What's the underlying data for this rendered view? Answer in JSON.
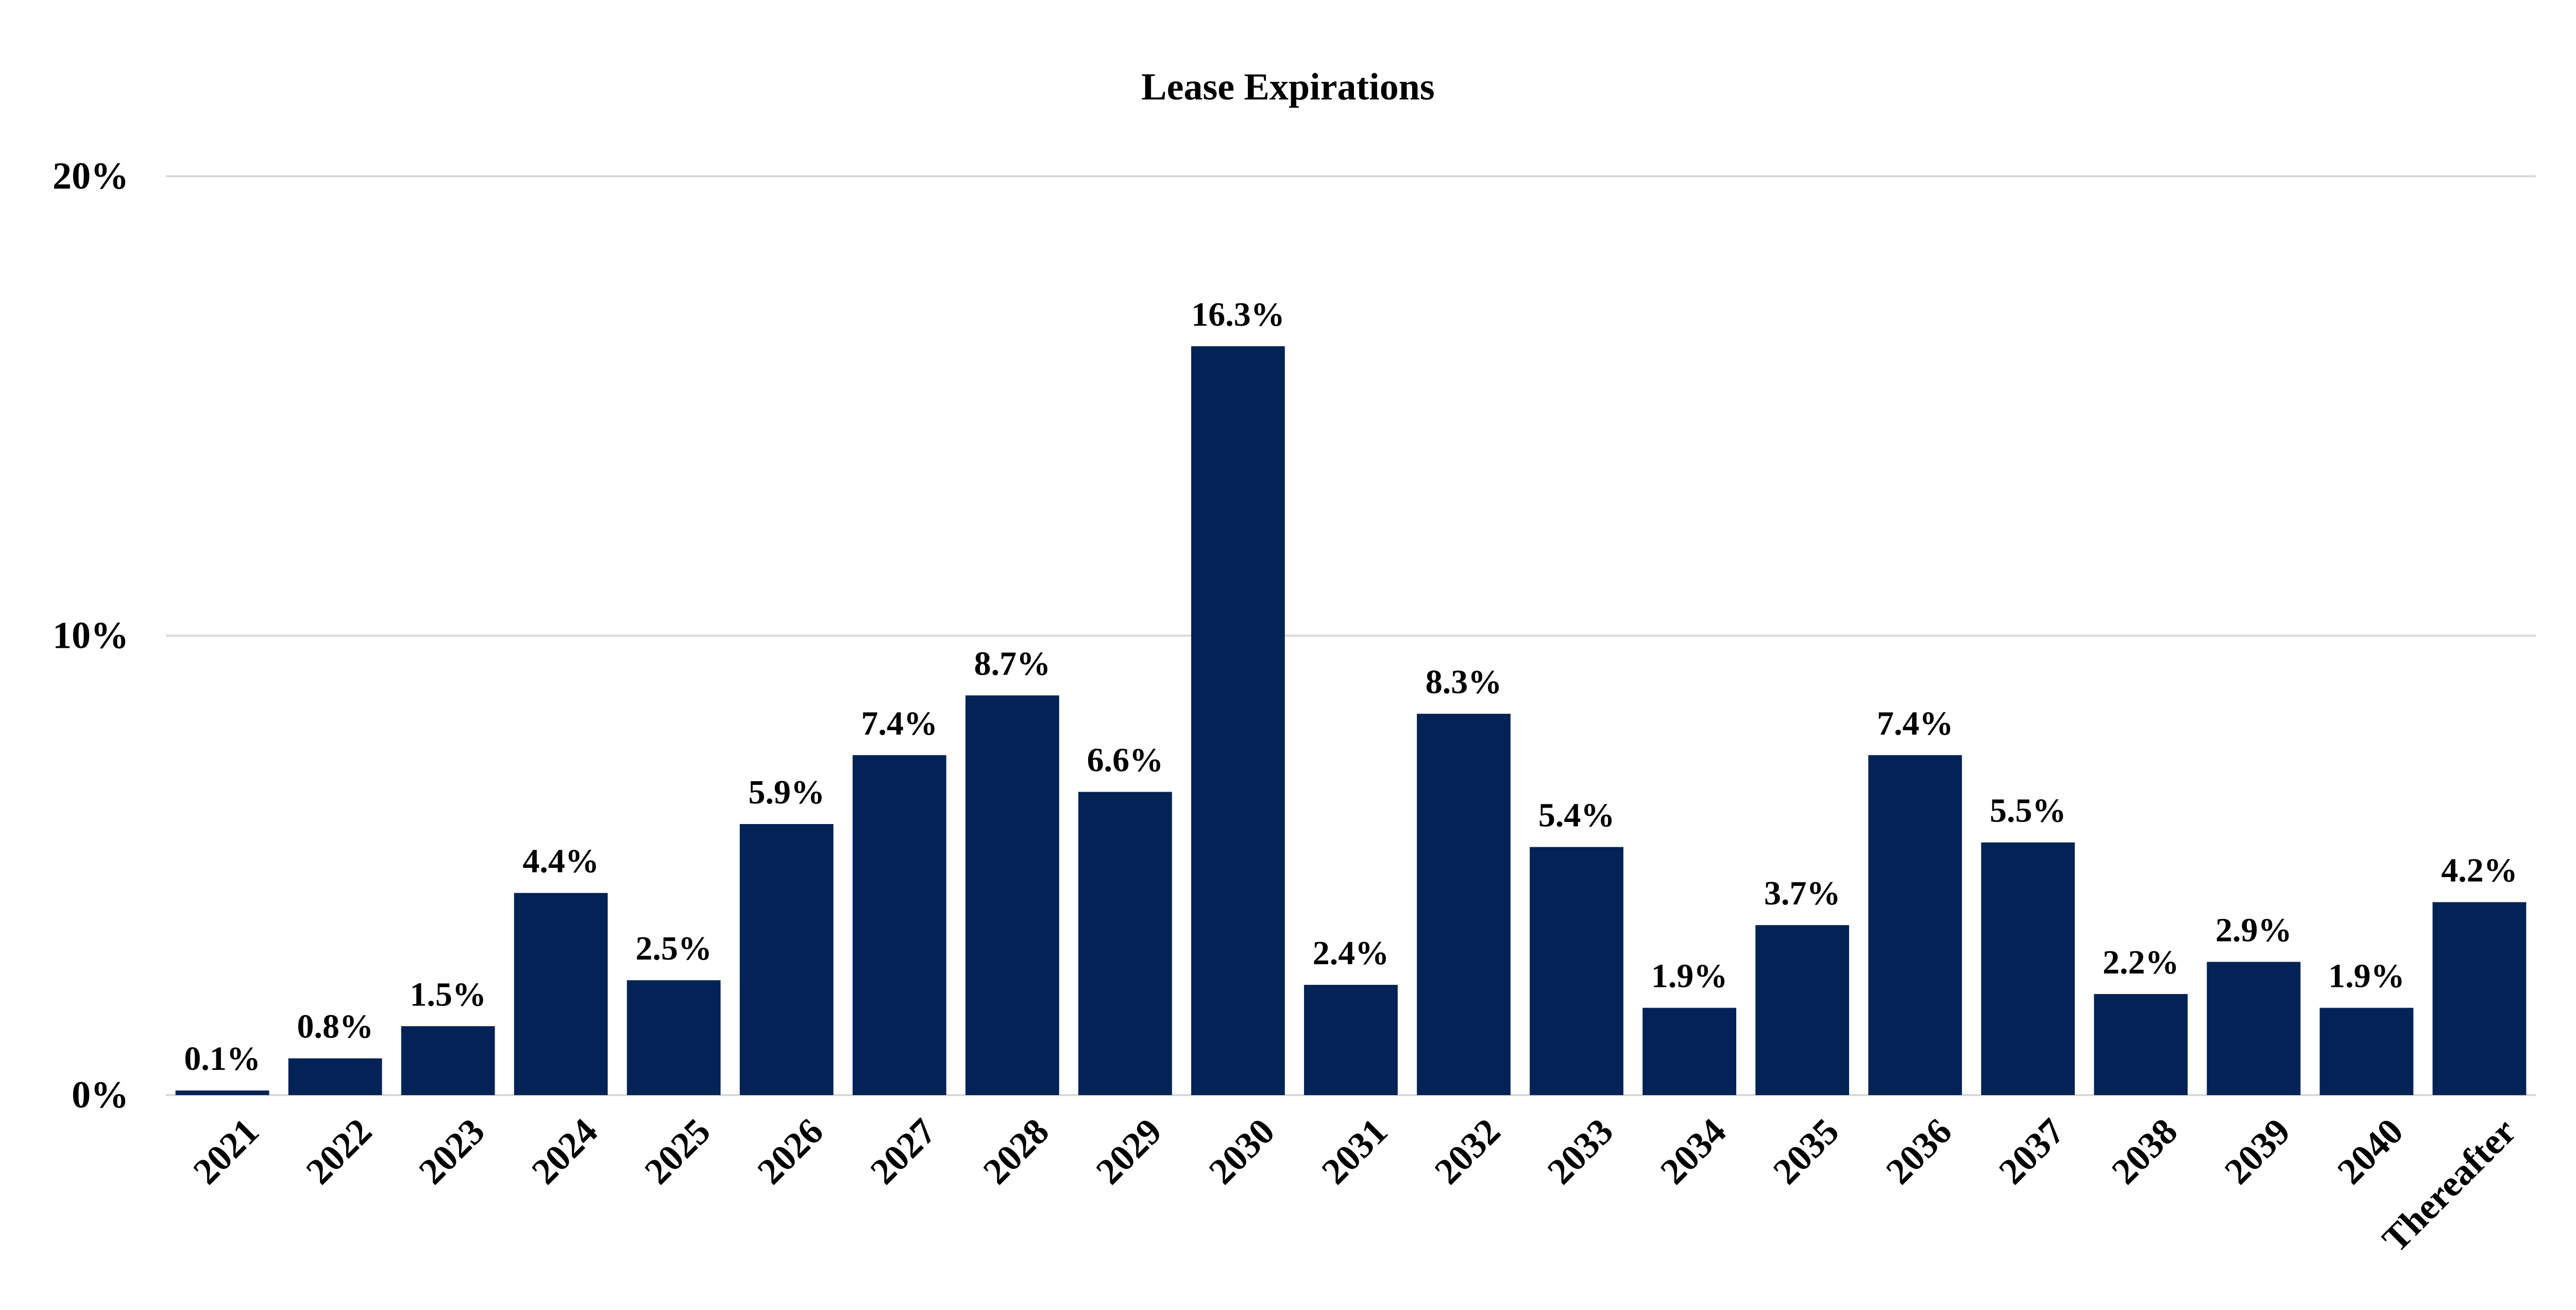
{
  "chart_data": {
    "type": "bar",
    "title": "Lease Expirations",
    "xlabel": "",
    "ylabel": "",
    "categories": [
      "2021",
      "2022",
      "2023",
      "2024",
      "2025",
      "2026",
      "2027",
      "2028",
      "2029",
      "2030",
      "2031",
      "2032",
      "2033",
      "2034",
      "2035",
      "2036",
      "2037",
      "2038",
      "2039",
      "2040",
      "Thereafter"
    ],
    "values": [
      0.1,
      0.8,
      1.5,
      4.4,
      2.5,
      5.9,
      7.4,
      8.7,
      6.6,
      16.3,
      2.4,
      8.3,
      5.4,
      1.9,
      3.7,
      7.4,
      5.5,
      2.2,
      2.9,
      1.9,
      4.2
    ],
    "data_labels": [
      "0.1%",
      "0.8%",
      "1.5%",
      "4.4%",
      "2.5%",
      "5.9%",
      "7.4%",
      "8.7%",
      "6.6%",
      "16.3%",
      "2.4%",
      "8.3%",
      "5.4%",
      "1.9%",
      "3.7%",
      "7.4%",
      "5.5%",
      "2.2%",
      "2.9%",
      "1.9%",
      "4.2%"
    ],
    "ylim": [
      0,
      20
    ],
    "yticks": [
      0,
      10,
      20
    ],
    "ytick_labels": [
      "0%",
      "10%",
      "20%"
    ],
    "grid": true,
    "legend": "none",
    "bar_color": "#032255",
    "grid_color": "#d9d9d9"
  }
}
